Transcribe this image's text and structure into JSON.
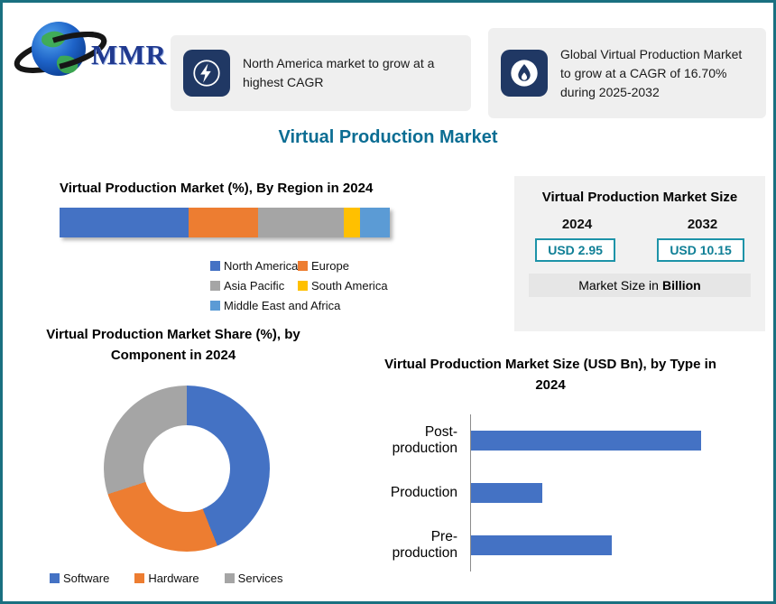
{
  "logo": {
    "text": "MMR"
  },
  "callouts": [
    {
      "icon": "lightning-icon",
      "text": "North America market to grow at a highest CAGR"
    },
    {
      "icon": "flame-icon",
      "text": "Global Virtual Production Market to grow at a CAGR of 16.70% during 2025-2032"
    }
  ],
  "page_title": "Virtual Production Market",
  "market_size_card": {
    "title": "Virtual Production Market Size",
    "columns": [
      {
        "year": "2024",
        "value": "USD 2.95"
      },
      {
        "year": "2032",
        "value": "USD 10.15"
      }
    ],
    "footer_prefix": "Market Size in",
    "footer_unit": "Billion"
  },
  "chart_data": [
    {
      "id": "region_share",
      "type": "bar",
      "subtype": "horizontal-stacked",
      "title": "Virtual Production Market (%), By Region in 2024",
      "categories": [
        "North America",
        "Europe",
        "Asia Pacific",
        "South America",
        "Middle East and Africa"
      ],
      "values": [
        39,
        21,
        26,
        5,
        9
      ],
      "unit": "%",
      "colors": [
        "#4472C4",
        "#ED7D31",
        "#A5A5A5",
        "#FFC000",
        "#5B9BD5"
      ],
      "legend_position": "bottom",
      "grid": false
    },
    {
      "id": "component_share",
      "type": "pie",
      "subtype": "donut",
      "title": "Virtual Production Market Share (%), by Component in 2024",
      "categories": [
        "Software",
        "Hardware",
        "Services"
      ],
      "values": [
        44,
        26,
        30
      ],
      "unit": "%",
      "colors": [
        "#4472C4",
        "#ED7D31",
        "#A5A5A5"
      ],
      "legend_position": "bottom"
    },
    {
      "id": "size_by_type",
      "type": "bar",
      "subtype": "horizontal",
      "title": "Virtual Production Market Size (USD Bn), by Type in 2024",
      "categories": [
        "Post-production",
        "Production",
        "Pre-production"
      ],
      "values_relative_to_max": [
        1.0,
        0.31,
        0.61
      ],
      "color": "#4472C4",
      "axis_value_labels_visible": false,
      "grid": false
    }
  ],
  "colors": {
    "page_border": "#1A7080",
    "title_teal": "#0B6D93",
    "icon_navy": "#203864",
    "callout_bg": "#EFEFEF",
    "card_bg": "#F1F1F1",
    "value_teal": "#0F7F96",
    "value_box_border": "#1D93A8"
  }
}
